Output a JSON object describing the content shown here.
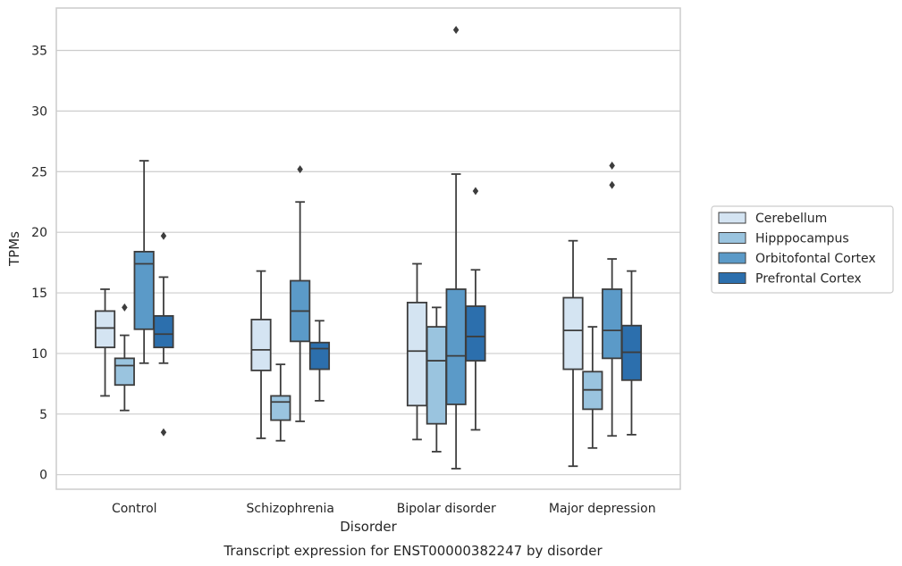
{
  "chart_data": {
    "type": "box",
    "title": "",
    "caption": "Transcript expression for ENST00000382247 by disorder",
    "xlabel": "Disorder",
    "ylabel": "TPMs",
    "ylim": [
      -1.2,
      38.5
    ],
    "yticks": [
      0,
      5,
      10,
      15,
      20,
      25,
      30,
      35
    ],
    "grid": true,
    "legend_position": "right",
    "categories": [
      "Control",
      "Schizophrenia",
      "Bipolar disorder",
      "Major depression"
    ],
    "series": [
      {
        "name": "Cerebellum",
        "color": "#d4e4f2",
        "boxes": [
          {
            "whislo": 6.5,
            "q1": 10.5,
            "med": 12.1,
            "q3": 13.5,
            "whishi": 15.3,
            "fliers": []
          },
          {
            "whislo": 3.0,
            "q1": 8.6,
            "med": 10.3,
            "q3": 12.8,
            "whishi": 16.8,
            "fliers": []
          },
          {
            "whislo": 2.9,
            "q1": 5.7,
            "med": 10.2,
            "q3": 14.2,
            "whishi": 17.4,
            "fliers": []
          },
          {
            "whislo": 0.7,
            "q1": 8.7,
            "med": 11.9,
            "q3": 14.6,
            "whishi": 19.3,
            "fliers": []
          }
        ]
      },
      {
        "name": "Hipppocampus",
        "color": "#9ac4df",
        "boxes": [
          {
            "whislo": 5.3,
            "q1": 7.4,
            "med": 9.0,
            "q3": 9.6,
            "whishi": 11.5,
            "fliers": [
              13.8
            ]
          },
          {
            "whislo": 2.8,
            "q1": 4.5,
            "med": 6.0,
            "q3": 6.5,
            "whishi": 9.1,
            "fliers": []
          },
          {
            "whislo": 1.9,
            "q1": 4.2,
            "med": 9.4,
            "q3": 12.2,
            "whishi": 13.8,
            "fliers": []
          },
          {
            "whislo": 2.2,
            "q1": 5.4,
            "med": 7.0,
            "q3": 8.5,
            "whishi": 12.2,
            "fliers": []
          }
        ]
      },
      {
        "name": "Orbitofontal Cortex",
        "color": "#5b9ac8",
        "boxes": [
          {
            "whislo": 9.2,
            "q1": 12.0,
            "med": 17.4,
            "q3": 18.4,
            "whishi": 25.9,
            "fliers": []
          },
          {
            "whislo": 4.4,
            "q1": 11.0,
            "med": 13.5,
            "q3": 16.0,
            "whishi": 22.5,
            "fliers": [
              25.2
            ]
          },
          {
            "whislo": 0.5,
            "q1": 5.8,
            "med": 9.8,
            "q3": 15.3,
            "whishi": 24.8,
            "fliers": [
              36.7
            ]
          },
          {
            "whislo": 3.2,
            "q1": 9.6,
            "med": 11.9,
            "q3": 15.3,
            "whishi": 17.8,
            "fliers": [
              23.9,
              25.5
            ]
          }
        ]
      },
      {
        "name": "Prefrontal Cortex",
        "color": "#2c6fad",
        "boxes": [
          {
            "whislo": 9.2,
            "q1": 10.5,
            "med": 11.6,
            "q3": 13.1,
            "whishi": 16.3,
            "fliers": [
              3.5,
              19.7
            ]
          },
          {
            "whislo": 6.1,
            "q1": 8.7,
            "med": 10.4,
            "q3": 10.9,
            "whishi": 12.7,
            "fliers": []
          },
          {
            "whislo": 3.7,
            "q1": 9.4,
            "med": 11.4,
            "q3": 13.9,
            "whishi": 16.9,
            "fliers": [
              23.4
            ]
          },
          {
            "whislo": 3.3,
            "q1": 7.8,
            "med": 10.1,
            "q3": 12.3,
            "whishi": 16.8,
            "fliers": []
          }
        ]
      }
    ]
  }
}
